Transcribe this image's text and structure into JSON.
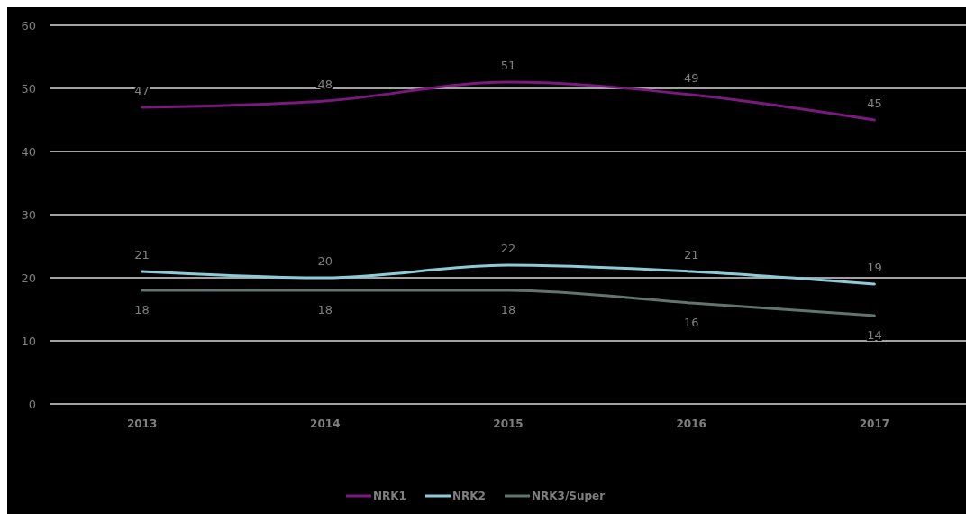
{
  "chart_data": {
    "type": "line",
    "categories": [
      "2013",
      "2014",
      "2015",
      "2016",
      "2017"
    ],
    "series": [
      {
        "name": "NRK1",
        "color": "#7b1a7e",
        "values": [
          47,
          48,
          51,
          49,
          45
        ]
      },
      {
        "name": "NRK2",
        "color": "#8ccbd8",
        "values": [
          21,
          20,
          22,
          21,
          19
        ]
      },
      {
        "name": "NRK3/Super",
        "color": "#5e7570",
        "values": [
          18,
          18,
          18,
          16,
          14
        ]
      }
    ],
    "ylim": [
      0,
      60
    ],
    "yticks": [
      0,
      10,
      20,
      30,
      40,
      50,
      60
    ],
    "grid": "y",
    "legend": "bottom",
    "data_labels": true,
    "marker": "none",
    "line_style": "solid"
  }
}
